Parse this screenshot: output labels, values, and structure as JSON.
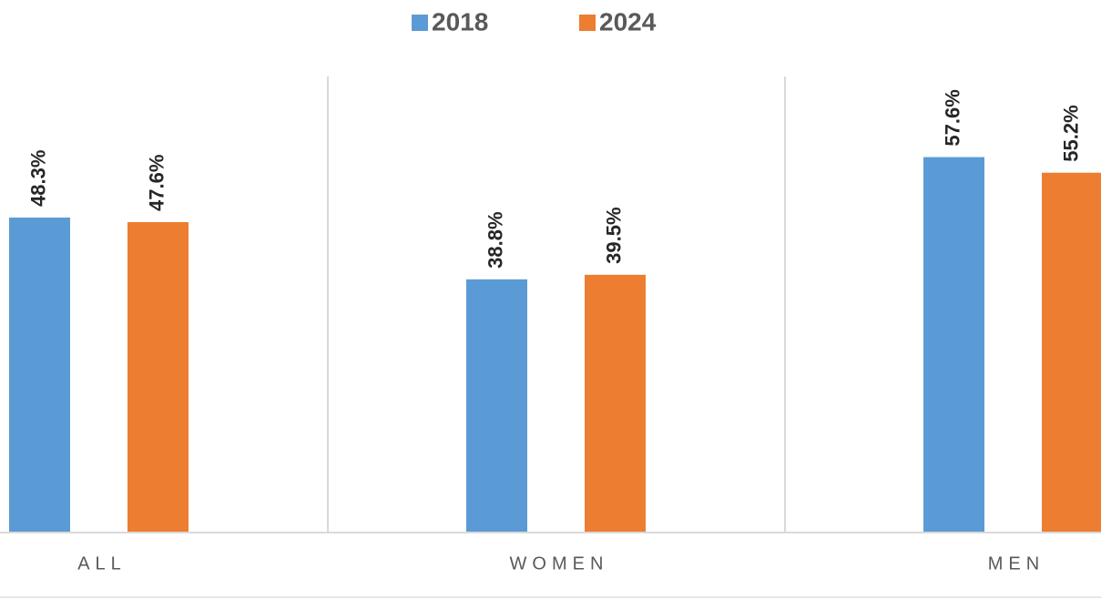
{
  "chart_data": {
    "type": "bar",
    "categories": [
      "ALL",
      "WOMEN",
      "MEN"
    ],
    "series": [
      {
        "name": "2018",
        "color": "#5b9bd5",
        "values": [
          48.3,
          38.8,
          57.6
        ],
        "value_labels": [
          "48.3%",
          "38.8%",
          "57.6%"
        ]
      },
      {
        "name": "2024",
        "color": "#ed7d31",
        "values": [
          47.6,
          39.5,
          55.2
        ],
        "value_labels": [
          "47.6%",
          "39.5%",
          "55.2%"
        ]
      }
    ],
    "ylim": [
      0,
      70
    ],
    "legend": "top"
  }
}
